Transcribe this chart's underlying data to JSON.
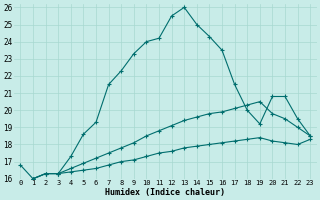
{
  "xlabel": "Humidex (Indice chaleur)",
  "background_color": "#c8ece8",
  "grid_color": "#a8d8d0",
  "line_color": "#006e6e",
  "xlim": [
    -0.5,
    23.5
  ],
  "ylim": [
    16,
    26.2
  ],
  "xticks": [
    0,
    1,
    2,
    3,
    4,
    5,
    6,
    7,
    8,
    9,
    10,
    11,
    12,
    13,
    14,
    15,
    16,
    17,
    18,
    19,
    20,
    21,
    22,
    23
  ],
  "yticks": [
    16,
    17,
    18,
    19,
    20,
    21,
    22,
    23,
    24,
    25,
    26
  ],
  "line1_x": [
    0,
    1,
    2,
    3,
    4,
    5,
    6,
    7,
    8,
    9,
    10,
    11,
    12,
    13,
    14,
    15,
    16,
    17,
    18,
    19,
    20,
    21,
    22,
    23
  ],
  "line1_y": [
    16.8,
    16.0,
    16.3,
    16.3,
    17.3,
    18.6,
    19.3,
    21.5,
    22.3,
    23.3,
    24.0,
    24.2,
    25.5,
    26.0,
    25.0,
    24.3,
    23.5,
    21.5,
    20.0,
    19.2,
    20.8,
    20.8,
    19.5,
    18.5
  ],
  "line2_x": [
    1,
    2,
    3,
    4,
    5,
    6,
    7,
    8,
    9,
    10,
    11,
    12,
    13,
    14,
    15,
    16,
    17,
    18,
    19,
    20,
    21,
    22,
    23
  ],
  "line2_y": [
    16.0,
    16.3,
    16.3,
    16.6,
    16.9,
    17.2,
    17.5,
    17.8,
    18.1,
    18.5,
    18.8,
    19.1,
    19.4,
    19.6,
    19.8,
    19.9,
    20.1,
    20.3,
    20.5,
    19.8,
    19.5,
    19.0,
    18.5
  ],
  "line3_x": [
    1,
    2,
    3,
    4,
    5,
    6,
    7,
    8,
    9,
    10,
    11,
    12,
    13,
    14,
    15,
    16,
    17,
    18,
    19,
    20,
    21,
    22,
    23
  ],
  "line3_y": [
    16.0,
    16.3,
    16.3,
    16.4,
    16.5,
    16.6,
    16.8,
    17.0,
    17.1,
    17.3,
    17.5,
    17.6,
    17.8,
    17.9,
    18.0,
    18.1,
    18.2,
    18.3,
    18.4,
    18.2,
    18.1,
    18.0,
    18.3
  ]
}
